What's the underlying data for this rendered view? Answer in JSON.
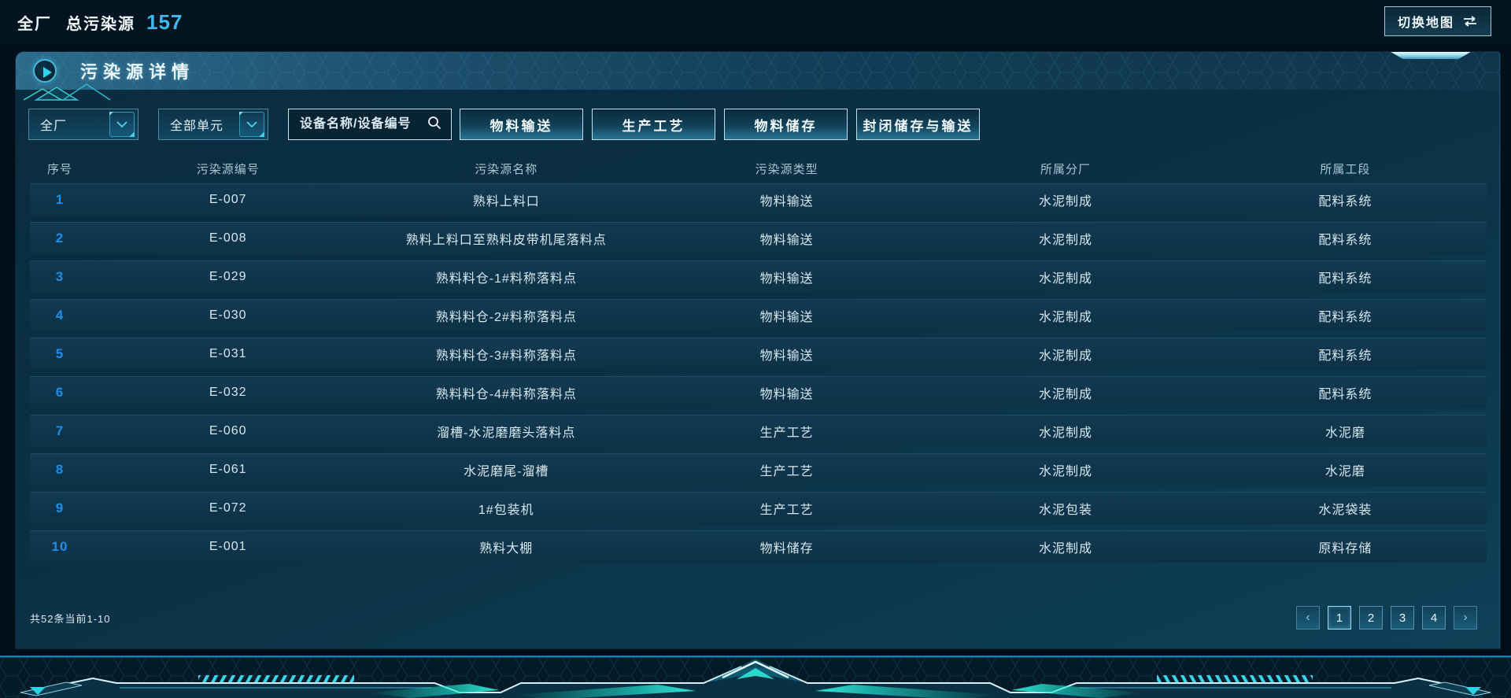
{
  "topbar": {
    "scope": "全厂",
    "metric_label": "总污染源",
    "metric_value": "157",
    "switch_map": "切换地图"
  },
  "colors": {
    "accent_cyan": "#3fd0e8",
    "metric_blue": "#3fb8ee",
    "row_index_blue": "#1e8fe8",
    "panel_teal": "#0e4057"
  },
  "panel": {
    "title": "污染源详情",
    "filters": {
      "factory_selected": "全厂",
      "unit_selected": "全部单元",
      "search_placeholder": "设备名称/设备编号",
      "types": [
        "物料输送",
        "生产工艺",
        "物料储存",
        "封闭储存与输送"
      ]
    },
    "table": {
      "columns": [
        "序号",
        "污染源编号",
        "污染源名称",
        "污染源类型",
        "所属分厂",
        "所属工段"
      ],
      "rows": [
        {
          "index": "1",
          "code": "E-007",
          "name": "熟料上料口",
          "type": "物料输送",
          "factory": "水泥制成",
          "section": "配料系统"
        },
        {
          "index": "2",
          "code": "E-008",
          "name": "熟料上料口至熟料皮带机尾落料点",
          "type": "物料输送",
          "factory": "水泥制成",
          "section": "配料系统"
        },
        {
          "index": "3",
          "code": "E-029",
          "name": "熟料料仓-1#料称落料点",
          "type": "物料输送",
          "factory": "水泥制成",
          "section": "配料系统"
        },
        {
          "index": "4",
          "code": "E-030",
          "name": "熟料料仓-2#料称落料点",
          "type": "物料输送",
          "factory": "水泥制成",
          "section": "配料系统"
        },
        {
          "index": "5",
          "code": "E-031",
          "name": "熟料料仓-3#料称落料点",
          "type": "物料输送",
          "factory": "水泥制成",
          "section": "配料系统"
        },
        {
          "index": "6",
          "code": "E-032",
          "name": "熟料料仓-4#料称落料点",
          "type": "物料输送",
          "factory": "水泥制成",
          "section": "配料系统"
        },
        {
          "index": "7",
          "code": "E-060",
          "name": "溜槽-水泥磨磨头落料点",
          "type": "生产工艺",
          "factory": "水泥制成",
          "section": "水泥磨"
        },
        {
          "index": "8",
          "code": "E-061",
          "name": "水泥磨尾-溜槽",
          "type": "生产工艺",
          "factory": "水泥制成",
          "section": "水泥磨"
        },
        {
          "index": "9",
          "code": "E-072",
          "name": "1#包装机",
          "type": "生产工艺",
          "factory": "水泥包装",
          "section": "水泥袋装"
        },
        {
          "index": "10",
          "code": "E-001",
          "name": "熟料大棚",
          "type": "物料储存",
          "factory": "水泥制成",
          "section": "原料存储"
        }
      ]
    },
    "pagination": {
      "summary": "共52条当前1-10",
      "prev": "‹",
      "next": "›",
      "pages": [
        "1",
        "2",
        "3",
        "4"
      ],
      "current": "1"
    }
  }
}
